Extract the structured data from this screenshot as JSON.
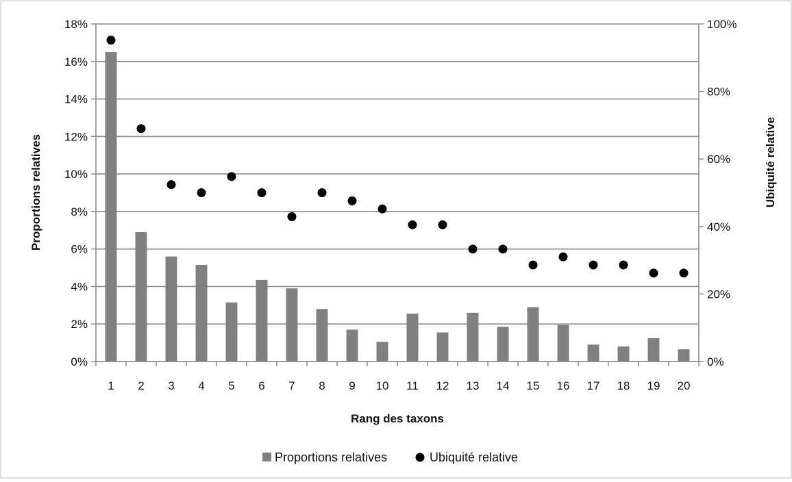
{
  "chart_data": {
    "type": "bar",
    "x_title": "Rang des taxons",
    "y_left_title": "Proportions relatives",
    "y_right_title": "Ubiquité relative",
    "categories": [
      "1",
      "2",
      "3",
      "4",
      "5",
      "6",
      "7",
      "8",
      "9",
      "10",
      "11",
      "12",
      "13",
      "14",
      "15",
      "16",
      "17",
      "18",
      "19",
      "20"
    ],
    "y_left_ticks": [
      "0%",
      "2%",
      "4%",
      "6%",
      "8%",
      "10%",
      "12%",
      "14%",
      "16%",
      "18%"
    ],
    "y_right_ticks": [
      "0%",
      "20%",
      "40%",
      "60%",
      "80%",
      "100%"
    ],
    "y_left_range": [
      0,
      18
    ],
    "y_right_range": [
      0,
      100
    ],
    "grid": true,
    "legend_position": "bottom",
    "series": [
      {
        "name": "Proportions relatives",
        "type": "bar",
        "axis": "left",
        "color": "#808080",
        "values": [
          16.5,
          6.9,
          5.6,
          5.15,
          3.15,
          4.35,
          3.9,
          2.8,
          1.7,
          1.05,
          2.55,
          1.55,
          2.6,
          1.85,
          2.9,
          1.95,
          0.9,
          0.8,
          1.25,
          0.65
        ]
      },
      {
        "name": "Ubiquité relative",
        "type": "scatter",
        "axis": "right",
        "color": "#000000",
        "values": [
          95.2,
          69.0,
          52.4,
          50.0,
          54.8,
          50.0,
          42.9,
          50.0,
          47.6,
          45.2,
          40.5,
          40.5,
          33.3,
          33.3,
          28.6,
          31.0,
          28.6,
          28.6,
          26.2,
          26.2
        ]
      }
    ]
  }
}
